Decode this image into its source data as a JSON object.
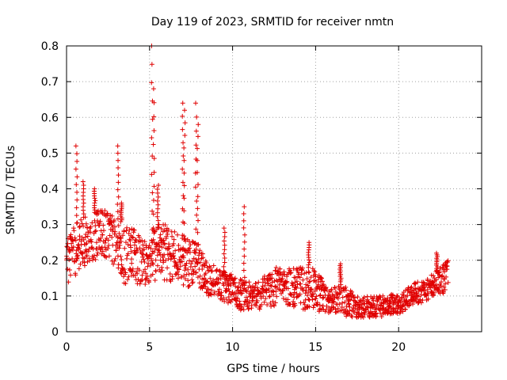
{
  "chart_data": {
    "type": "scatter",
    "title": "Day 119 of 2023, SRMTID for receiver nmtn",
    "xlabel": "GPS time / hours",
    "ylabel": "SRMTID / TECUs",
    "xlim": [
      0,
      25
    ],
    "ylim": [
      0,
      0.8
    ],
    "xticks": [
      "0",
      "5",
      "10",
      "15",
      "20"
    ],
    "yticks": [
      "0",
      "0.1",
      "0.2",
      "0.3",
      "0.4",
      "0.5",
      "0.6",
      "0.7",
      "0.8"
    ],
    "grid": true,
    "marker": "plus",
    "series": [
      {
        "name": "SRMTID",
        "color": "#e00000",
        "envelope": {
          "x": [
            0,
            0.5,
            1,
            1.5,
            2,
            2.5,
            3,
            3.5,
            4,
            4.5,
            5,
            5.5,
            6,
            6.5,
            7,
            7.5,
            8,
            8.5,
            9,
            9.5,
            10,
            10.5,
            11,
            11.5,
            12,
            12.5,
            13,
            13.5,
            14,
            14.5,
            15,
            15.5,
            16,
            16.5,
            17,
            17.5,
            18,
            18.5,
            19,
            19.5,
            20,
            20.5,
            21,
            21.5,
            22,
            22.5,
            23
          ],
          "low": [
            0.12,
            0.15,
            0.18,
            0.2,
            0.2,
            0.2,
            0.18,
            0.12,
            0.15,
            0.12,
            0.13,
            0.15,
            0.14,
            0.14,
            0.13,
            0.12,
            0.12,
            0.1,
            0.1,
            0.08,
            0.08,
            0.06,
            0.06,
            0.06,
            0.06,
            0.07,
            0.07,
            0.07,
            0.06,
            0.06,
            0.06,
            0.05,
            0.05,
            0.05,
            0.04,
            0.04,
            0.04,
            0.04,
            0.04,
            0.05,
            0.05,
            0.06,
            0.08,
            0.08,
            0.1,
            0.1,
            0.12
          ],
          "high": [
            0.26,
            0.3,
            0.32,
            0.33,
            0.34,
            0.34,
            0.32,
            0.3,
            0.3,
            0.28,
            0.28,
            0.3,
            0.3,
            0.28,
            0.27,
            0.26,
            0.24,
            0.2,
            0.18,
            0.17,
            0.16,
            0.16,
            0.14,
            0.14,
            0.16,
            0.18,
            0.18,
            0.18,
            0.18,
            0.18,
            0.18,
            0.14,
            0.12,
            0.14,
            0.12,
            0.1,
            0.1,
            0.1,
            0.1,
            0.11,
            0.1,
            0.12,
            0.14,
            0.14,
            0.16,
            0.18,
            0.2
          ]
        },
        "spikes": [
          {
            "x": 0.6,
            "y": 0.52
          },
          {
            "x": 1.0,
            "y": 0.42
          },
          {
            "x": 1.7,
            "y": 0.4
          },
          {
            "x": 3.1,
            "y": 0.52
          },
          {
            "x": 3.3,
            "y": 0.36
          },
          {
            "x": 5.15,
            "y": 0.8
          },
          {
            "x": 5.25,
            "y": 0.68
          },
          {
            "x": 5.5,
            "y": 0.41
          },
          {
            "x": 7.0,
            "y": 0.64
          },
          {
            "x": 7.1,
            "y": 0.62
          },
          {
            "x": 7.8,
            "y": 0.64
          },
          {
            "x": 7.9,
            "y": 0.58
          },
          {
            "x": 9.5,
            "y": 0.29
          },
          {
            "x": 10.7,
            "y": 0.35
          },
          {
            "x": 14.6,
            "y": 0.25
          },
          {
            "x": 16.5,
            "y": 0.19
          },
          {
            "x": 22.3,
            "y": 0.22
          }
        ]
      }
    ]
  }
}
